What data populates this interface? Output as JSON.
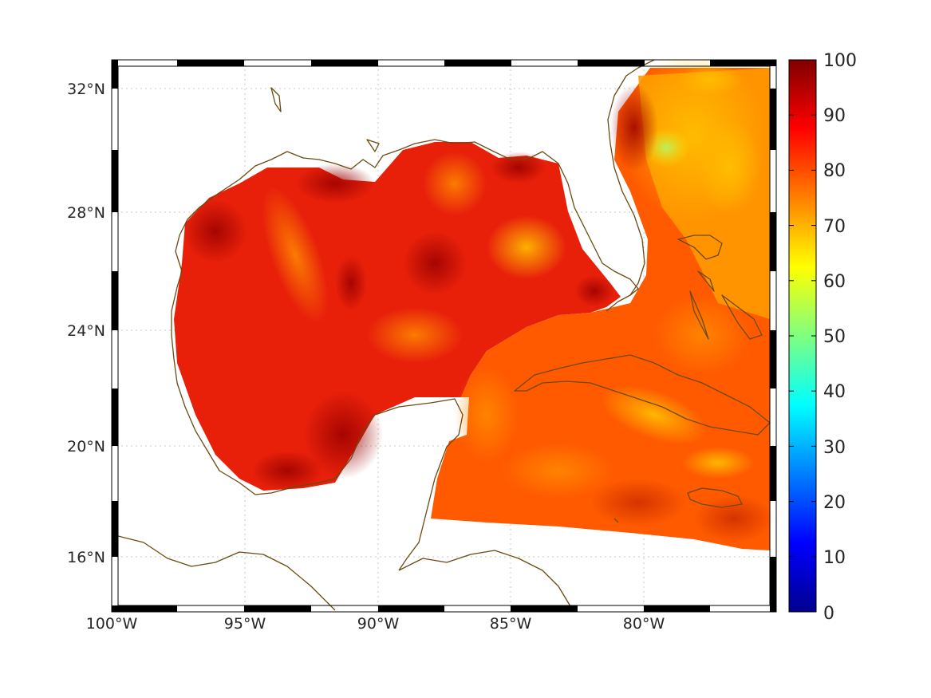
{
  "map": {
    "lon_ticks": [
      "100°W",
      "95°W",
      "90°W",
      "85°W",
      "80°W"
    ],
    "lat_ticks": [
      "32°N",
      "28°N",
      "24°N",
      "20°N",
      "16°N"
    ],
    "lon_range": [
      -100,
      -75
    ],
    "lat_range": [
      14.3,
      33
    ]
  },
  "colorbar": {
    "colormap": "jet",
    "ticks": [
      "100",
      "90",
      "80",
      "70",
      "60",
      "50",
      "40",
      "30",
      "20",
      "10",
      "0"
    ],
    "range": [
      0,
      100
    ]
  },
  "colors": {
    "coastline": "#6b4a10",
    "frame": "#000000",
    "field_high": "#b00000",
    "field_mid": "#ff8c00",
    "field_low": "#ffe000"
  }
}
